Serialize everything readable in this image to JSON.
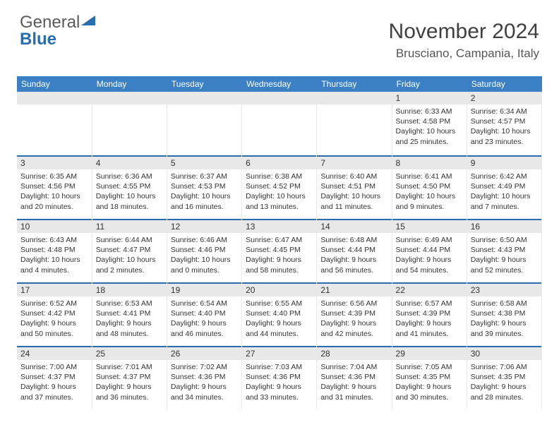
{
  "logo": {
    "text1": "General",
    "text2": "Blue"
  },
  "header": {
    "month": "November 2024",
    "location": "Brusciano, Campania, Italy"
  },
  "colors": {
    "header_bg": "#3b7fc4",
    "header_text": "#ffffff",
    "daynum_bg": "#e8e8e8",
    "row_border": "#2a6cb0",
    "body_text": "#333333",
    "logo_gray": "#5a5a5a",
    "logo_blue": "#2a6cb0"
  },
  "daysOfWeek": [
    "Sunday",
    "Monday",
    "Tuesday",
    "Wednesday",
    "Thursday",
    "Friday",
    "Saturday"
  ],
  "weeks": [
    [
      null,
      null,
      null,
      null,
      null,
      {
        "num": "1",
        "sunrise": "Sunrise: 6:33 AM",
        "sunset": "Sunset: 4:58 PM",
        "daylight": "Daylight: 10 hours and 25 minutes."
      },
      {
        "num": "2",
        "sunrise": "Sunrise: 6:34 AM",
        "sunset": "Sunset: 4:57 PM",
        "daylight": "Daylight: 10 hours and 23 minutes."
      }
    ],
    [
      {
        "num": "3",
        "sunrise": "Sunrise: 6:35 AM",
        "sunset": "Sunset: 4:56 PM",
        "daylight": "Daylight: 10 hours and 20 minutes."
      },
      {
        "num": "4",
        "sunrise": "Sunrise: 6:36 AM",
        "sunset": "Sunset: 4:55 PM",
        "daylight": "Daylight: 10 hours and 18 minutes."
      },
      {
        "num": "5",
        "sunrise": "Sunrise: 6:37 AM",
        "sunset": "Sunset: 4:53 PM",
        "daylight": "Daylight: 10 hours and 16 minutes."
      },
      {
        "num": "6",
        "sunrise": "Sunrise: 6:38 AM",
        "sunset": "Sunset: 4:52 PM",
        "daylight": "Daylight: 10 hours and 13 minutes."
      },
      {
        "num": "7",
        "sunrise": "Sunrise: 6:40 AM",
        "sunset": "Sunset: 4:51 PM",
        "daylight": "Daylight: 10 hours and 11 minutes."
      },
      {
        "num": "8",
        "sunrise": "Sunrise: 6:41 AM",
        "sunset": "Sunset: 4:50 PM",
        "daylight": "Daylight: 10 hours and 9 minutes."
      },
      {
        "num": "9",
        "sunrise": "Sunrise: 6:42 AM",
        "sunset": "Sunset: 4:49 PM",
        "daylight": "Daylight: 10 hours and 7 minutes."
      }
    ],
    [
      {
        "num": "10",
        "sunrise": "Sunrise: 6:43 AM",
        "sunset": "Sunset: 4:48 PM",
        "daylight": "Daylight: 10 hours and 4 minutes."
      },
      {
        "num": "11",
        "sunrise": "Sunrise: 6:44 AM",
        "sunset": "Sunset: 4:47 PM",
        "daylight": "Daylight: 10 hours and 2 minutes."
      },
      {
        "num": "12",
        "sunrise": "Sunrise: 6:46 AM",
        "sunset": "Sunset: 4:46 PM",
        "daylight": "Daylight: 10 hours and 0 minutes."
      },
      {
        "num": "13",
        "sunrise": "Sunrise: 6:47 AM",
        "sunset": "Sunset: 4:45 PM",
        "daylight": "Daylight: 9 hours and 58 minutes."
      },
      {
        "num": "14",
        "sunrise": "Sunrise: 6:48 AM",
        "sunset": "Sunset: 4:44 PM",
        "daylight": "Daylight: 9 hours and 56 minutes."
      },
      {
        "num": "15",
        "sunrise": "Sunrise: 6:49 AM",
        "sunset": "Sunset: 4:44 PM",
        "daylight": "Daylight: 9 hours and 54 minutes."
      },
      {
        "num": "16",
        "sunrise": "Sunrise: 6:50 AM",
        "sunset": "Sunset: 4:43 PM",
        "daylight": "Daylight: 9 hours and 52 minutes."
      }
    ],
    [
      {
        "num": "17",
        "sunrise": "Sunrise: 6:52 AM",
        "sunset": "Sunset: 4:42 PM",
        "daylight": "Daylight: 9 hours and 50 minutes."
      },
      {
        "num": "18",
        "sunrise": "Sunrise: 6:53 AM",
        "sunset": "Sunset: 4:41 PM",
        "daylight": "Daylight: 9 hours and 48 minutes."
      },
      {
        "num": "19",
        "sunrise": "Sunrise: 6:54 AM",
        "sunset": "Sunset: 4:40 PM",
        "daylight": "Daylight: 9 hours and 46 minutes."
      },
      {
        "num": "20",
        "sunrise": "Sunrise: 6:55 AM",
        "sunset": "Sunset: 4:40 PM",
        "daylight": "Daylight: 9 hours and 44 minutes."
      },
      {
        "num": "21",
        "sunrise": "Sunrise: 6:56 AM",
        "sunset": "Sunset: 4:39 PM",
        "daylight": "Daylight: 9 hours and 42 minutes."
      },
      {
        "num": "22",
        "sunrise": "Sunrise: 6:57 AM",
        "sunset": "Sunset: 4:39 PM",
        "daylight": "Daylight: 9 hours and 41 minutes."
      },
      {
        "num": "23",
        "sunrise": "Sunrise: 6:58 AM",
        "sunset": "Sunset: 4:38 PM",
        "daylight": "Daylight: 9 hours and 39 minutes."
      }
    ],
    [
      {
        "num": "24",
        "sunrise": "Sunrise: 7:00 AM",
        "sunset": "Sunset: 4:37 PM",
        "daylight": "Daylight: 9 hours and 37 minutes."
      },
      {
        "num": "25",
        "sunrise": "Sunrise: 7:01 AM",
        "sunset": "Sunset: 4:37 PM",
        "daylight": "Daylight: 9 hours and 36 minutes."
      },
      {
        "num": "26",
        "sunrise": "Sunrise: 7:02 AM",
        "sunset": "Sunset: 4:36 PM",
        "daylight": "Daylight: 9 hours and 34 minutes."
      },
      {
        "num": "27",
        "sunrise": "Sunrise: 7:03 AM",
        "sunset": "Sunset: 4:36 PM",
        "daylight": "Daylight: 9 hours and 33 minutes."
      },
      {
        "num": "28",
        "sunrise": "Sunrise: 7:04 AM",
        "sunset": "Sunset: 4:36 PM",
        "daylight": "Daylight: 9 hours and 31 minutes."
      },
      {
        "num": "29",
        "sunrise": "Sunrise: 7:05 AM",
        "sunset": "Sunset: 4:35 PM",
        "daylight": "Daylight: 9 hours and 30 minutes."
      },
      {
        "num": "30",
        "sunrise": "Sunrise: 7:06 AM",
        "sunset": "Sunset: 4:35 PM",
        "daylight": "Daylight: 9 hours and 28 minutes."
      }
    ]
  ]
}
